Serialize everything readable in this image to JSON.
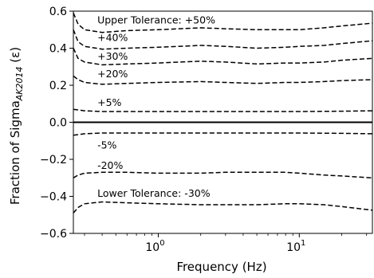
{
  "chart_data": {
    "type": "line",
    "xlabel": "Frequency (Hz)",
    "ylabel_main": "Fraction of Sigma",
    "ylabel_sub": "AK2014",
    "ylabel_tail": " (ε)",
    "x_scale": "log",
    "xlim": [
      0.25,
      33
    ],
    "ylim": [
      -0.6,
      0.6
    ],
    "x_ticks": [
      {
        "value": 1,
        "base": "10",
        "exp": "0"
      },
      {
        "value": 10,
        "base": "10",
        "exp": "1"
      }
    ],
    "y_ticks": [
      {
        "value": 0.6,
        "label": "0.6"
      },
      {
        "value": 0.4,
        "label": "0.4"
      },
      {
        "value": 0.2,
        "label": "0.2"
      },
      {
        "value": 0.0,
        "label": "0.0"
      },
      {
        "value": -0.2,
        "label": "−0.2"
      },
      {
        "value": -0.4,
        "label": "−0.4"
      },
      {
        "value": -0.6,
        "label": "−0.6"
      }
    ],
    "zero_line": 0,
    "series": [
      {
        "label": "Upper Tolerance: +50%",
        "label_x": 0.37,
        "label_y": 0.55,
        "points": [
          [
            0.25,
            0.59
          ],
          [
            0.27,
            0.53
          ],
          [
            0.3,
            0.5
          ],
          [
            0.4,
            0.485
          ],
          [
            0.6,
            0.495
          ],
          [
            1,
            0.5
          ],
          [
            2,
            0.51
          ],
          [
            3,
            0.505
          ],
          [
            5,
            0.5
          ],
          [
            8,
            0.5
          ],
          [
            10,
            0.5
          ],
          [
            15,
            0.51
          ],
          [
            20,
            0.52
          ],
          [
            33,
            0.535
          ]
        ]
      },
      {
        "label": "+40%",
        "label_x": 0.37,
        "label_y": 0.455,
        "points": [
          [
            0.25,
            0.5
          ],
          [
            0.27,
            0.435
          ],
          [
            0.3,
            0.41
          ],
          [
            0.4,
            0.395
          ],
          [
            0.6,
            0.4
          ],
          [
            1,
            0.405
          ],
          [
            2,
            0.415
          ],
          [
            3,
            0.41
          ],
          [
            5,
            0.4
          ],
          [
            8,
            0.405
          ],
          [
            10,
            0.41
          ],
          [
            15,
            0.415
          ],
          [
            20,
            0.425
          ],
          [
            33,
            0.44
          ]
        ]
      },
      {
        "label": "+30%",
        "label_x": 0.37,
        "label_y": 0.355,
        "points": [
          [
            0.25,
            0.4
          ],
          [
            0.27,
            0.345
          ],
          [
            0.3,
            0.325
          ],
          [
            0.4,
            0.31
          ],
          [
            0.6,
            0.315
          ],
          [
            1,
            0.32
          ],
          [
            2,
            0.33
          ],
          [
            3,
            0.325
          ],
          [
            5,
            0.315
          ],
          [
            8,
            0.32
          ],
          [
            10,
            0.32
          ],
          [
            15,
            0.325
          ],
          [
            20,
            0.335
          ],
          [
            33,
            0.345
          ]
        ]
      },
      {
        "label": "+20%",
        "label_x": 0.37,
        "label_y": 0.26,
        "points": [
          [
            0.25,
            0.25
          ],
          [
            0.27,
            0.23
          ],
          [
            0.3,
            0.215
          ],
          [
            0.4,
            0.205
          ],
          [
            0.6,
            0.21
          ],
          [
            1,
            0.215
          ],
          [
            2,
            0.22
          ],
          [
            3,
            0.215
          ],
          [
            5,
            0.21
          ],
          [
            8,
            0.215
          ],
          [
            10,
            0.215
          ],
          [
            15,
            0.22
          ],
          [
            20,
            0.225
          ],
          [
            33,
            0.23
          ]
        ]
      },
      {
        "label": "+5%",
        "label_x": 0.37,
        "label_y": 0.105,
        "points": [
          [
            0.25,
            0.07
          ],
          [
            0.3,
            0.062
          ],
          [
            0.4,
            0.058
          ],
          [
            1,
            0.058
          ],
          [
            3,
            0.058
          ],
          [
            10,
            0.058
          ],
          [
            20,
            0.06
          ],
          [
            33,
            0.062
          ]
        ]
      },
      {
        "label": "-5%",
        "label_x": 0.37,
        "label_y": -0.125,
        "points": [
          [
            0.25,
            -0.07
          ],
          [
            0.3,
            -0.062
          ],
          [
            0.4,
            -0.058
          ],
          [
            1,
            -0.058
          ],
          [
            3,
            -0.058
          ],
          [
            10,
            -0.058
          ],
          [
            20,
            -0.06
          ],
          [
            33,
            -0.062
          ]
        ]
      },
      {
        "label": "-20%",
        "label_x": 0.37,
        "label_y": -0.235,
        "points": [
          [
            0.25,
            -0.3
          ],
          [
            0.27,
            -0.285
          ],
          [
            0.3,
            -0.275
          ],
          [
            0.4,
            -0.27
          ],
          [
            0.6,
            -0.27
          ],
          [
            1,
            -0.275
          ],
          [
            2,
            -0.275
          ],
          [
            3,
            -0.27
          ],
          [
            5,
            -0.27
          ],
          [
            8,
            -0.27
          ],
          [
            10,
            -0.275
          ],
          [
            15,
            -0.285
          ],
          [
            20,
            -0.29
          ],
          [
            33,
            -0.3
          ]
        ]
      },
      {
        "label": "Lower Tolerance: -30%",
        "label_x": 0.37,
        "label_y": -0.385,
        "points": [
          [
            0.25,
            -0.49
          ],
          [
            0.27,
            -0.46
          ],
          [
            0.3,
            -0.44
          ],
          [
            0.4,
            -0.43
          ],
          [
            0.6,
            -0.435
          ],
          [
            1,
            -0.44
          ],
          [
            2,
            -0.445
          ],
          [
            3,
            -0.445
          ],
          [
            5,
            -0.445
          ],
          [
            8,
            -0.44
          ],
          [
            10,
            -0.44
          ],
          [
            15,
            -0.445
          ],
          [
            20,
            -0.455
          ],
          [
            33,
            -0.475
          ]
        ]
      }
    ]
  }
}
